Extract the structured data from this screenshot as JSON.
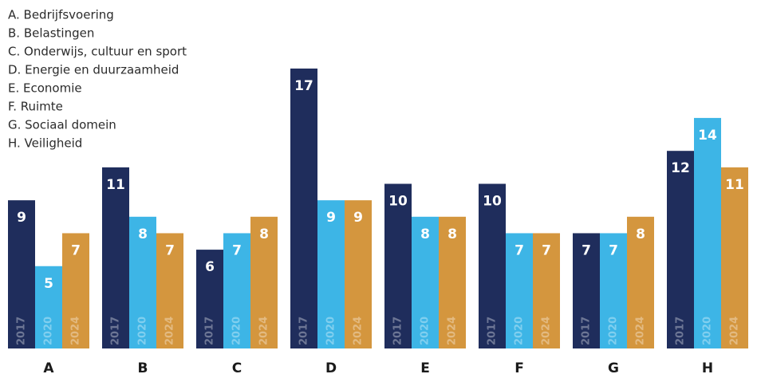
{
  "chart_data": {
    "type": "bar",
    "category_names": [
      "A. Bedrijfsvoering",
      "B. Belastingen",
      "C. Onderwijs, cultuur en sport",
      "D. Energie en duurzaamheid",
      "E. Economie",
      "F. Ruimte",
      "G. Sociaal domein",
      "H. Veiligheid"
    ],
    "categories": [
      "A",
      "B",
      "C",
      "D",
      "E",
      "F",
      "G",
      "H"
    ],
    "series": [
      {
        "name": "2017",
        "color": "#1f2d5c",
        "values": [
          9,
          11,
          6,
          17,
          10,
          10,
          7,
          12
        ]
      },
      {
        "name": "2020",
        "color": "#3db5e6",
        "values": [
          5,
          8,
          7,
          9,
          8,
          7,
          7,
          14
        ]
      },
      {
        "name": "2024",
        "color": "#d4963e",
        "values": [
          7,
          7,
          8,
          9,
          8,
          7,
          8,
          11
        ]
      }
    ]
  }
}
